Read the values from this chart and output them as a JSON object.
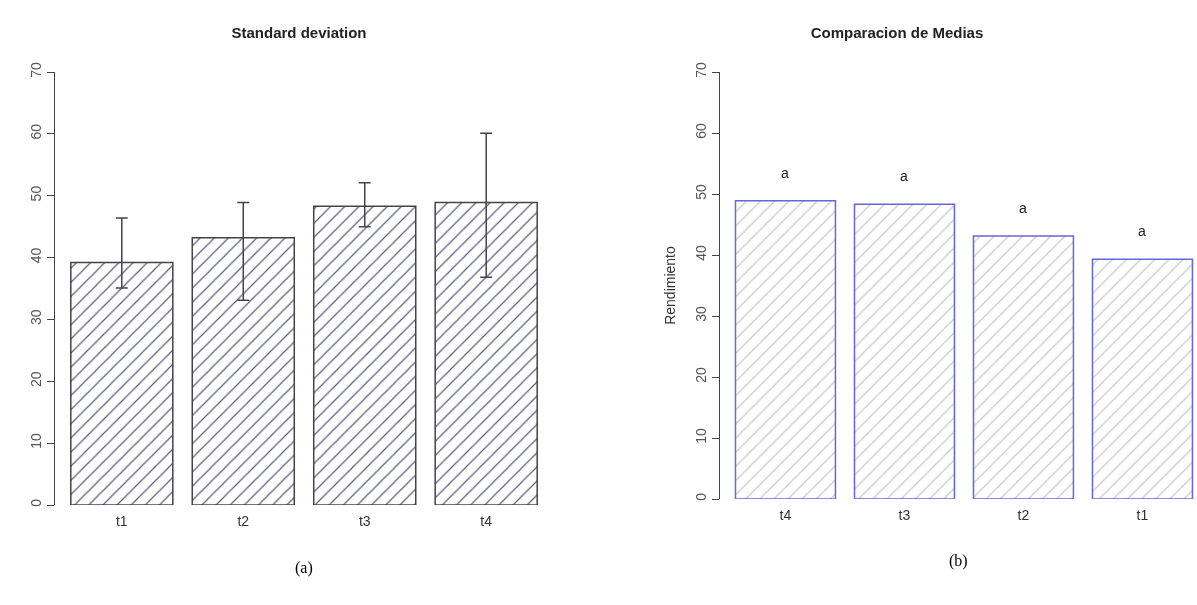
{
  "chart_data": [
    {
      "type": "bar",
      "title": "Standard deviation",
      "categories": [
        "t1",
        "t2",
        "t3",
        "t4"
      ],
      "values": [
        39.2,
        43.2,
        48.3,
        48.9
      ],
      "color": "#444444",
      "errors": [
        [
          35.1,
          46.4
        ],
        [
          33.1,
          48.9
        ],
        [
          45.0,
          52.1
        ],
        [
          36.8,
          60.1
        ]
      ],
      "ylim": [
        0,
        70
      ],
      "yticks": [
        0,
        10,
        20,
        30,
        40,
        50,
        60,
        70
      ],
      "grid": false,
      "legend": false,
      "annotations": [
        "(a)"
      ]
    },
    {
      "type": "bar",
      "title": "Comparacion de Medias",
      "ylabel": "Rendimiento",
      "categories": [
        "t4",
        "t3",
        "t2",
        "t1"
      ],
      "values": [
        48.9,
        48.3,
        43.1,
        39.3
      ],
      "color": "#6666dd",
      "ylim": [
        0,
        70
      ],
      "yticks": [
        0,
        10,
        20,
        30,
        40,
        50,
        60,
        70
      ],
      "grid": false,
      "legend": false,
      "annotations": [
        {
          "text": "a",
          "x": "t4",
          "y": 48.9
        },
        {
          "text": "a",
          "x": "t3",
          "y": 48.3
        },
        {
          "text": "a",
          "x": "t2",
          "y": 43.1
        },
        {
          "text": "a",
          "x": "t1",
          "y": 39.3
        },
        "(b)"
      ]
    }
  ]
}
